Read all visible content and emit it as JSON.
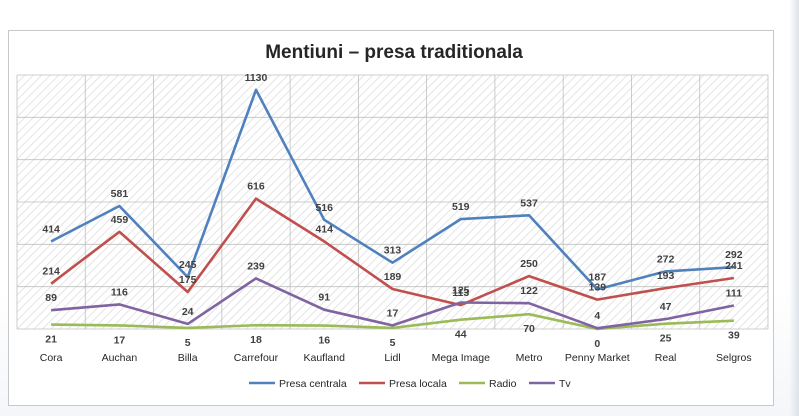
{
  "chart_data": {
    "type": "line",
    "title": "Mentiuni – presa traditionala",
    "xlabel": "",
    "ylabel": "",
    "ylim": [
      0,
      1200
    ],
    "grid": true,
    "legend_position": "bottom",
    "categories": [
      "Cora",
      "Auchan",
      "Billa",
      "Carrefour",
      "Kaufland",
      "Lidl",
      "Mega Image",
      "Metro",
      "Penny Market",
      "Real",
      "Selgros"
    ],
    "series": [
      {
        "name": "Presa centrala",
        "color": "#4f81bd",
        "values": [
          414,
          581,
          245,
          1130,
          516,
          313,
          519,
          537,
          187,
          272,
          292
        ]
      },
      {
        "name": "Presa locala",
        "color": "#c0504d",
        "values": [
          214,
          459,
          175,
          616,
          414,
          189,
          113,
          250,
          139,
          193,
          241
        ]
      },
      {
        "name": "Radio",
        "color": "#9bbb59",
        "values": [
          21,
          17,
          5,
          18,
          16,
          5,
          44,
          70,
          0,
          25,
          39
        ]
      },
      {
        "name": "Tv",
        "color": "#8064a2",
        "values": [
          89,
          116,
          24,
          239,
          91,
          17,
          125,
          122,
          4,
          47,
          111
        ]
      }
    ]
  }
}
